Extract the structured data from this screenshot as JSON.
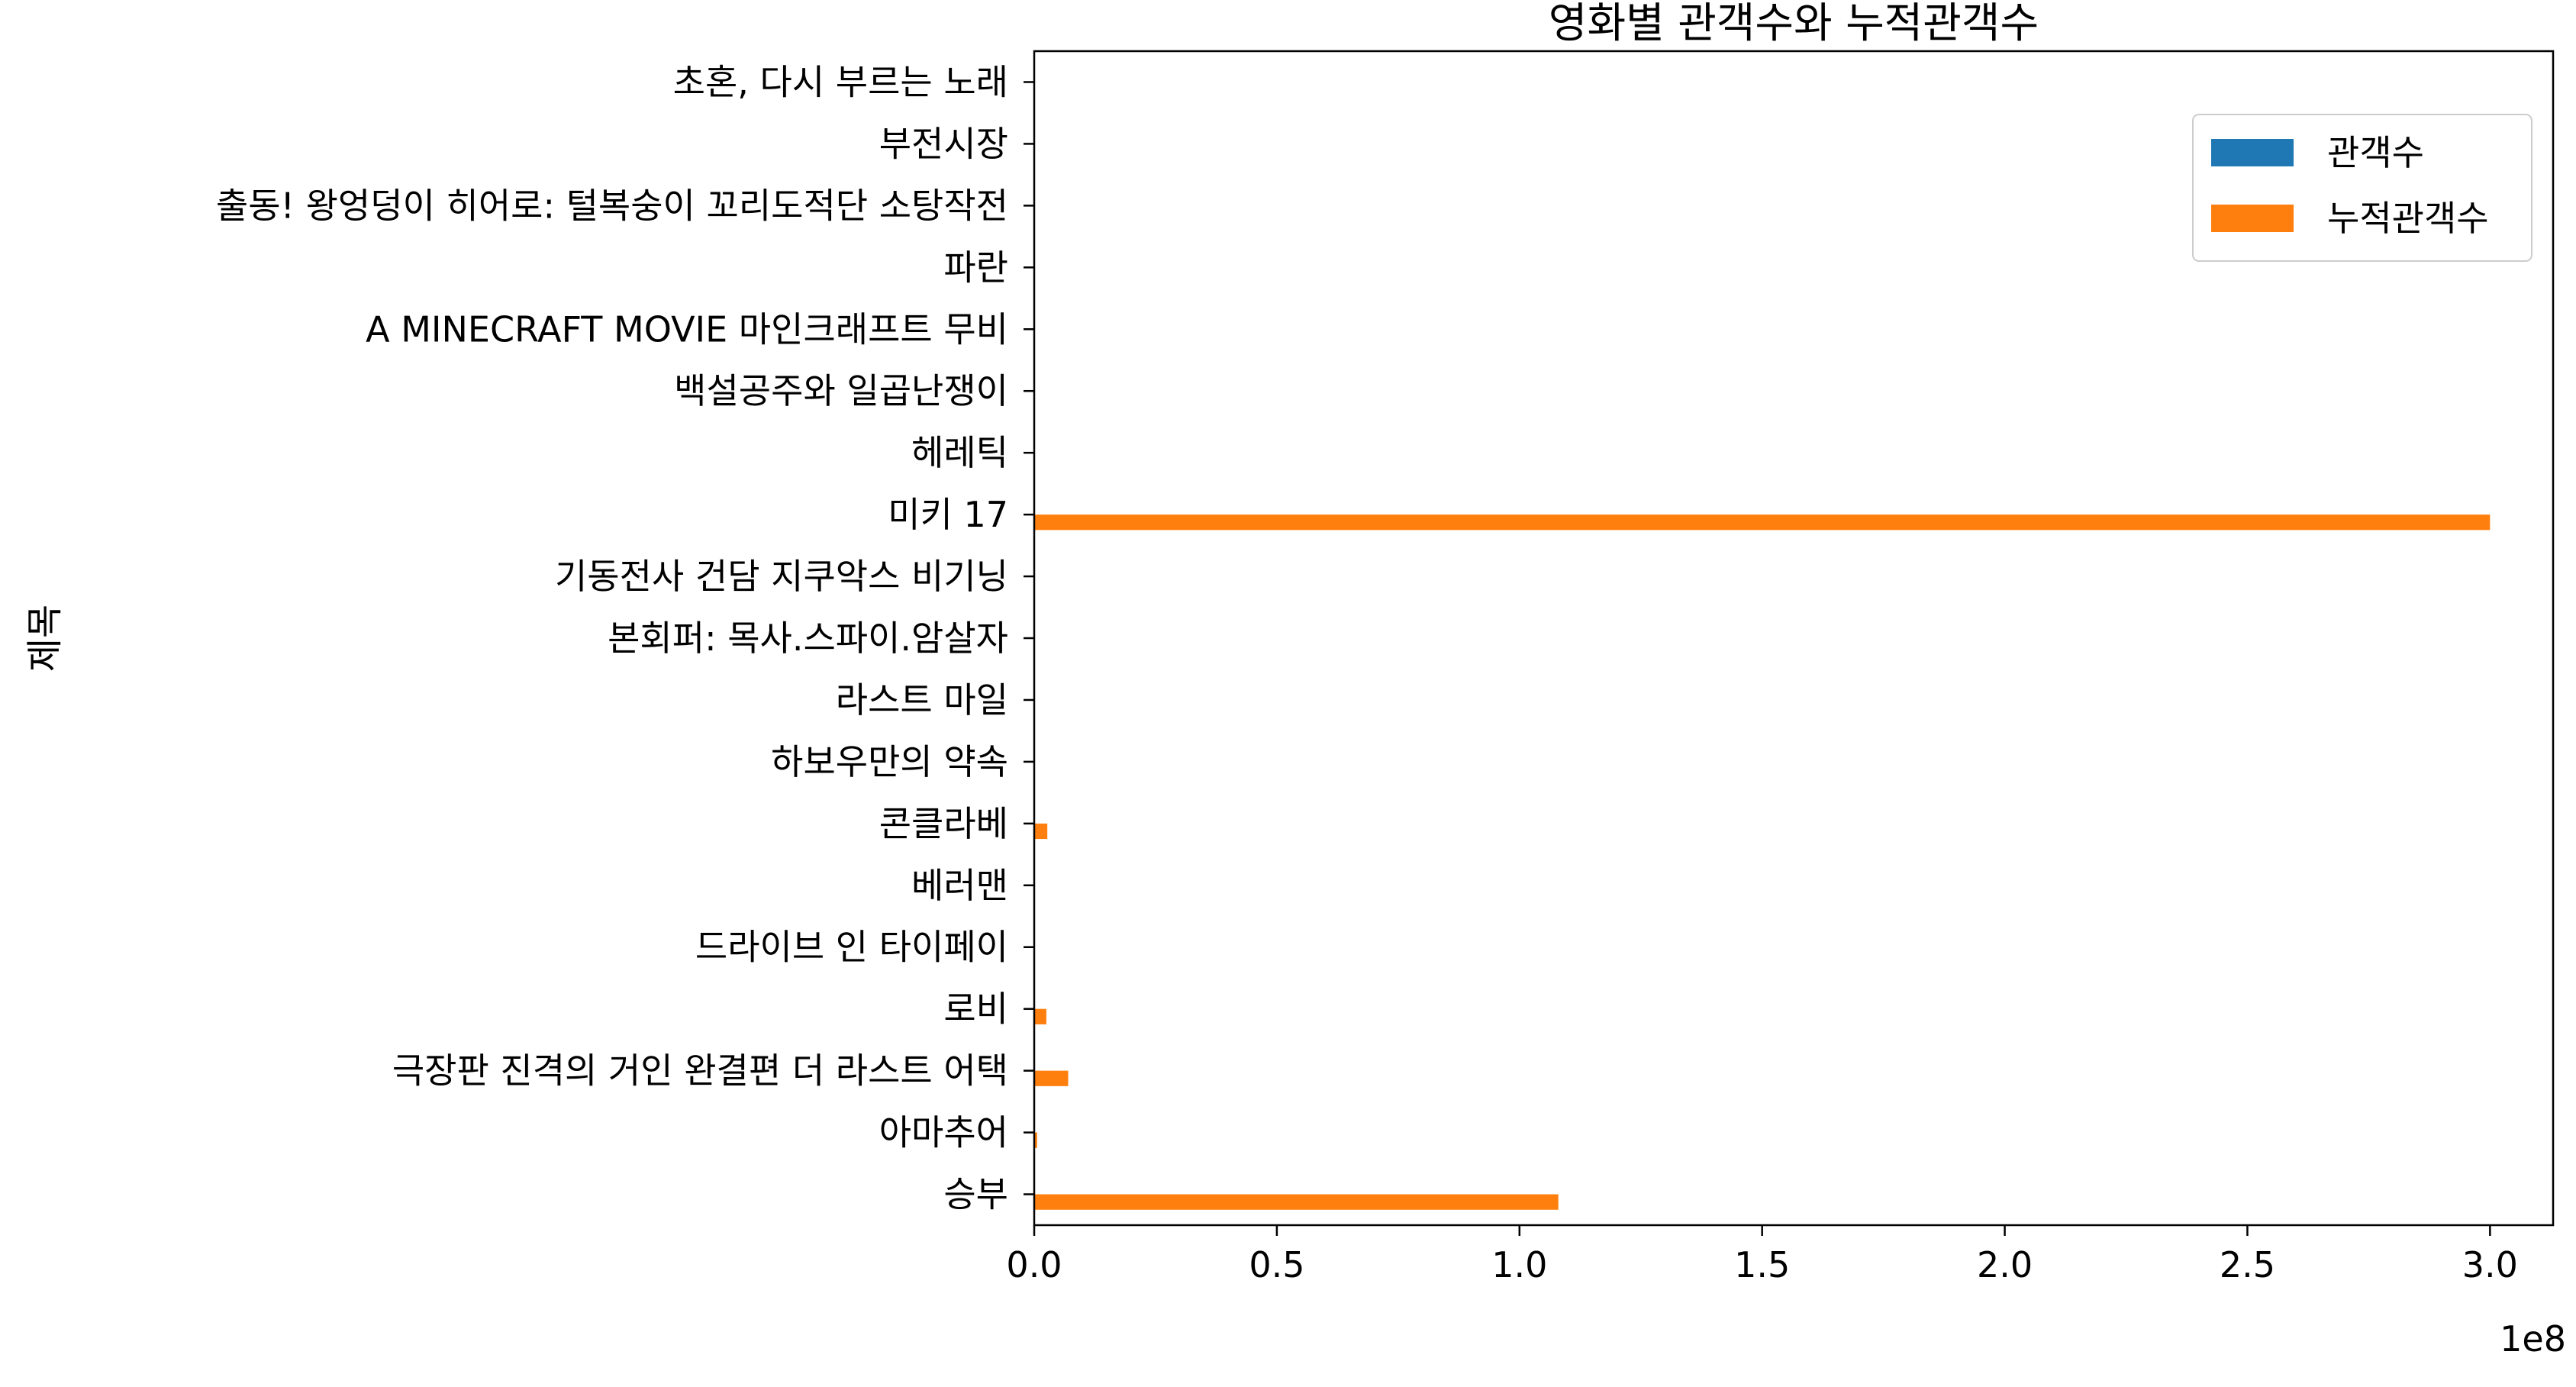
{
  "chart_data": {
    "type": "bar",
    "orientation": "horizontal",
    "title": "영화별 관객수와 누적관객수",
    "xlabel": "",
    "ylabel": "제목",
    "x_offset_label": "1e8",
    "x_scale_factor": 100000000,
    "xlim": [
      0,
      3.13
    ],
    "xticks": [
      0.0,
      0.5,
      1.0,
      1.5,
      2.0,
      2.5,
      3.0
    ],
    "xtick_labels": [
      "0.0",
      "0.5",
      "1.0",
      "1.5",
      "2.0",
      "2.5",
      "3.0"
    ],
    "grid": false,
    "legend_position": "top-right",
    "categories": [
      "승부",
      "아마추어",
      "극장판 진격의 거인 완결편 더 라스트 어택",
      "로비",
      "드라이브 인 타이페이",
      "베러맨",
      "콘클라베",
      "하보우만의 약속",
      "라스트 마일",
      "본회퍼: 목사.스파이.암살자",
      "기동전사 건담 지쿠악스 비기닝",
      "미키 17",
      "헤레틱",
      "백설공주와 일곱난쟁이",
      "A MINECRAFT MOVIE 마인크래프트 무비",
      "파란",
      "출동! 왕엉덩이 히어로: 털복숭이 꼬리도적단 소탕작전",
      "부전시장",
      "초혼, 다시 부르는 노래"
    ],
    "series": [
      {
        "name": "관객수",
        "color": "#1f77b4",
        "values": [
          0.0002,
          5e-05,
          0.0001,
          5e-05,
          1e-05,
          1e-05,
          5e-05,
          1e-05,
          1e-05,
          1e-05,
          5e-05,
          0.0002,
          5e-05,
          5e-05,
          0.0001,
          1e-05,
          1e-05,
          1e-05,
          1e-05
        ]
      },
      {
        "name": "누적관객수",
        "color": "#ff7f0e",
        "values": [
          1.08,
          0.006,
          0.07,
          0.025,
          0.001,
          0.001,
          0.027,
          0.001,
          0.001,
          0.001,
          0.001,
          3.0,
          0.001,
          0.001,
          0.001,
          0.001,
          0.001,
          0.001,
          0.001
        ]
      }
    ]
  }
}
